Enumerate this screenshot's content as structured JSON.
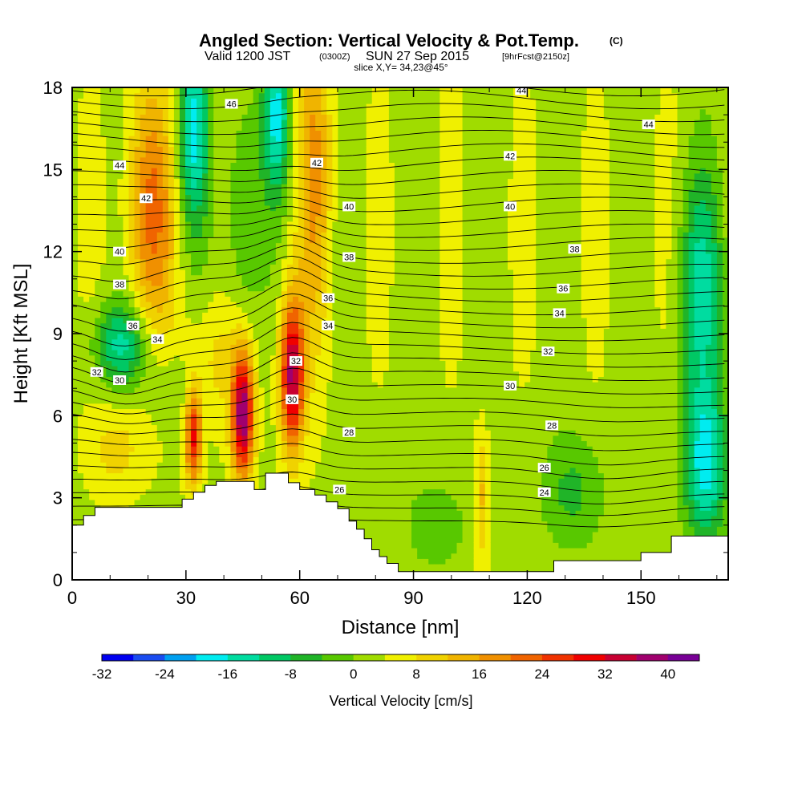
{
  "title": {
    "main": "Angled Section: Vertical Velocity & Pot.Temp.",
    "units_mark": "(C)",
    "valid_prefix": "Valid 1200 JST",
    "valid_utc": "(0300Z)",
    "valid_date": "SUN 27 Sep 2015",
    "forecast": "[9hrFcst@2150z]",
    "slice": "slice X,Y= 34,23@45°"
  },
  "chart_data": {
    "type": "heatmap",
    "xlabel": "Distance [nm]",
    "ylabel": "Height [Kft MSL]",
    "xlim": [
      0,
      173
    ],
    "ylim": [
      0,
      18
    ],
    "x_ticks": [
      "0",
      "30",
      "60",
      "90",
      "120",
      "150"
    ],
    "x_tick_values": [
      0,
      30,
      60,
      90,
      120,
      150
    ],
    "y_ticks": [
      "0",
      "3",
      "6",
      "9",
      "12",
      "15",
      "18"
    ],
    "y_tick_values": [
      0,
      3,
      6,
      9,
      12,
      15,
      18
    ],
    "colorbar": {
      "title": "Vertical Velocity [cm/s]",
      "tick_labels": [
        "-32",
        "-24",
        "-16",
        "-8",
        "0",
        "8",
        "16",
        "24",
        "32",
        "40"
      ],
      "levels_min": -32,
      "levels_max": 44,
      "level_step": 4,
      "colors": [
        "#0000f0",
        "#1a4cf0",
        "#00a0f0",
        "#00ecf0",
        "#00dca0",
        "#00c864",
        "#20b428",
        "#58c800",
        "#a0dc00",
        "#f0f000",
        "#f0d200",
        "#f0b400",
        "#f09000",
        "#f06400",
        "#f03200",
        "#f00000",
        "#c80032",
        "#a0006e",
        "#780096"
      ]
    },
    "theta_contour_labels": [
      {
        "text": "46",
        "x": 42.0,
        "y": 17.4
      },
      {
        "text": "44",
        "x": 118.5,
        "y": 17.9
      },
      {
        "text": "44",
        "x": 12.5,
        "y": 15.15
      },
      {
        "text": "44",
        "x": 152.0,
        "y": 16.65
      },
      {
        "text": "42",
        "x": 19.5,
        "y": 13.95
      },
      {
        "text": "42",
        "x": 64.5,
        "y": 15.25
      },
      {
        "text": "42",
        "x": 115.5,
        "y": 15.5
      },
      {
        "text": "40",
        "x": 12.5,
        "y": 12.0
      },
      {
        "text": "40",
        "x": 73.0,
        "y": 13.65
      },
      {
        "text": "40",
        "x": 115.5,
        "y": 13.65
      },
      {
        "text": "38",
        "x": 12.5,
        "y": 10.8
      },
      {
        "text": "38",
        "x": 73.0,
        "y": 11.8
      },
      {
        "text": "38",
        "x": 132.5,
        "y": 12.1
      },
      {
        "text": "36",
        "x": 16.0,
        "y": 9.3
      },
      {
        "text": "36",
        "x": 67.5,
        "y": 10.3
      },
      {
        "text": "36",
        "x": 129.5,
        "y": 10.65
      },
      {
        "text": "34",
        "x": 22.5,
        "y": 8.8
      },
      {
        "text": "34",
        "x": 67.5,
        "y": 9.3
      },
      {
        "text": "34",
        "x": 128.5,
        "y": 9.75
      },
      {
        "text": "32",
        "x": 59.0,
        "y": 8.0
      },
      {
        "text": "32",
        "x": 6.5,
        "y": 7.6
      },
      {
        "text": "32",
        "x": 125.5,
        "y": 8.35
      },
      {
        "text": "30",
        "x": 12.5,
        "y": 7.3
      },
      {
        "text": "30",
        "x": 58.0,
        "y": 6.6
      },
      {
        "text": "30",
        "x": 115.5,
        "y": 7.1
      },
      {
        "text": "28",
        "x": 73.0,
        "y": 5.4
      },
      {
        "text": "28",
        "x": 126.5,
        "y": 5.65
      },
      {
        "text": "26",
        "x": 70.5,
        "y": 3.3
      },
      {
        "text": "26",
        "x": 124.5,
        "y": 4.1
      },
      {
        "text": "24",
        "x": 124.5,
        "y": 3.2
      }
    ],
    "terrain_profile": [
      [
        0,
        2.0
      ],
      [
        3,
        2.0
      ],
      [
        3,
        2.35
      ],
      [
        6,
        2.35
      ],
      [
        6,
        2.65
      ],
      [
        29,
        2.65
      ],
      [
        29,
        2.95
      ],
      [
        32,
        2.95
      ],
      [
        32,
        3.2
      ],
      [
        35,
        3.2
      ],
      [
        35,
        3.45
      ],
      [
        38,
        3.45
      ],
      [
        38,
        3.6
      ],
      [
        48,
        3.6
      ],
      [
        48,
        3.3
      ],
      [
        51,
        3.3
      ],
      [
        51,
        3.9
      ],
      [
        57,
        3.9
      ],
      [
        57,
        3.55
      ],
      [
        60,
        3.55
      ],
      [
        60,
        3.3
      ],
      [
        64,
        3.3
      ],
      [
        64,
        3.1
      ],
      [
        67,
        3.1
      ],
      [
        67,
        2.85
      ],
      [
        70,
        2.85
      ],
      [
        70,
        2.6
      ],
      [
        73,
        2.6
      ],
      [
        73,
        2.15
      ],
      [
        75,
        2.15
      ],
      [
        75,
        1.85
      ],
      [
        77,
        1.85
      ],
      [
        77,
        1.5
      ],
      [
        79,
        1.5
      ],
      [
        79,
        1.1
      ],
      [
        81,
        1.1
      ],
      [
        81,
        0.85
      ],
      [
        83,
        0.85
      ],
      [
        83,
        0.6
      ],
      [
        86,
        0.6
      ],
      [
        86,
        0.3
      ],
      [
        88,
        0.3
      ],
      [
        88,
        0.3
      ],
      [
        127,
        0.3
      ],
      [
        127,
        0.7
      ],
      [
        150,
        0.7
      ],
      [
        150,
        1.0
      ],
      [
        158,
        1.0
      ],
      [
        158,
        1.6
      ],
      [
        173,
        1.6
      ]
    ]
  }
}
